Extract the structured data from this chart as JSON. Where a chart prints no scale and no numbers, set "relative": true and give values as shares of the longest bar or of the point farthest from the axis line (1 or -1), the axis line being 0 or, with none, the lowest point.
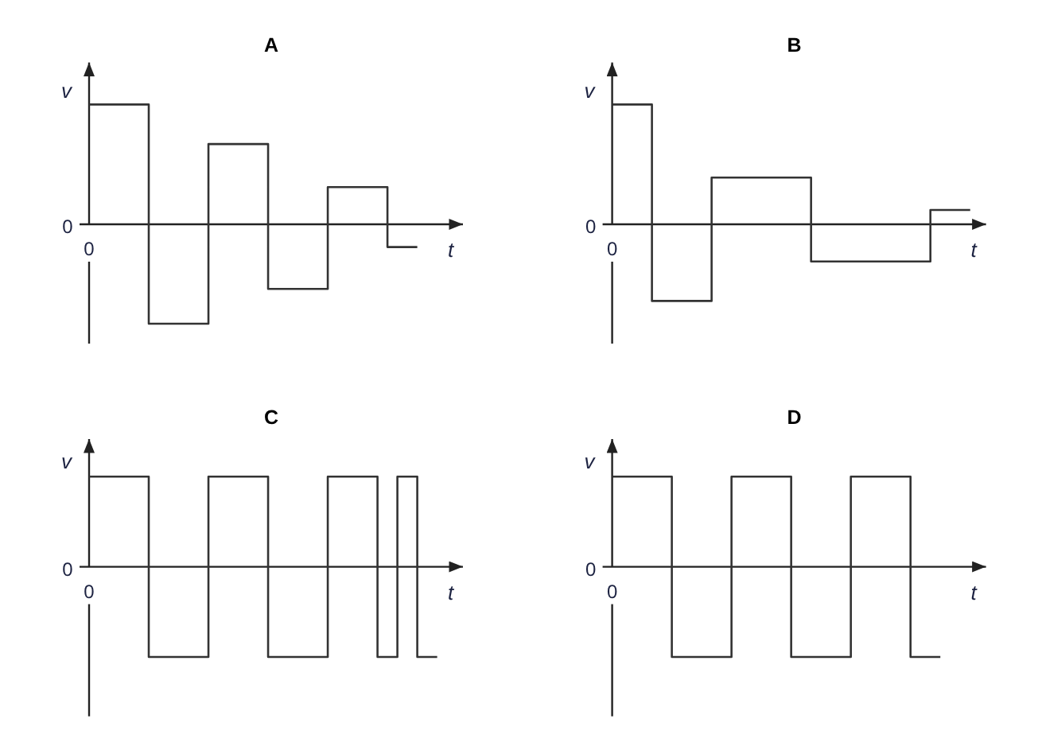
{
  "chart_data": [
    {
      "type": "step",
      "title": "A",
      "xlabel": "t",
      "ylabel": "v",
      "relative": true,
      "color": "#333333",
      "annotations": [
        "0",
        "0"
      ],
      "categories": [
        null,
        null,
        null,
        null,
        null,
        null,
        null,
        null,
        null,
        null,
        null,
        null,
        null,
        null,
        null,
        null,
        null,
        null,
        null,
        null,
        null,
        null,
        null,
        null,
        null,
        null,
        null,
        null,
        null,
        null,
        null,
        null,
        null,
        null
      ],
      "values": [
        1,
        1,
        1,
        1,
        1,
        1,
        -0.83,
        -0.83,
        -0.83,
        -0.83,
        -0.83,
        -0.83,
        0.67,
        0.67,
        0.67,
        0.67,
        0.67,
        0.67,
        -0.54,
        -0.54,
        -0.54,
        -0.54,
        -0.54,
        -0.54,
        0.31,
        0.31,
        0.31,
        0.31,
        0.31,
        0.31,
        -0.19,
        -0.19,
        -0.19,
        -0.19
      ]
    },
    {
      "type": "step",
      "title": "B",
      "xlabel": "t",
      "ylabel": "v",
      "relative": true,
      "color": "#333333",
      "annotations": [
        "0",
        "0"
      ],
      "categories": [
        null,
        null,
        null,
        null,
        null,
        null,
        null,
        null,
        null,
        null,
        null,
        null,
        null,
        null,
        null,
        null,
        null,
        null,
        null,
        null,
        null,
        null,
        null,
        null,
        null,
        null,
        null,
        null,
        null,
        null,
        null,
        null,
        null,
        null,
        null,
        null,
        null
      ],
      "values": [
        1,
        1,
        1,
        1,
        -0.64,
        -0.64,
        -0.64,
        -0.64,
        -0.64,
        -0.64,
        0.39,
        0.39,
        0.39,
        0.39,
        0.39,
        0.39,
        0.39,
        0.39,
        0.39,
        0.39,
        -0.31,
        -0.31,
        -0.31,
        -0.31,
        -0.31,
        -0.31,
        -0.31,
        -0.31,
        -0.31,
        -0.31,
        -0.31,
        -0.31,
        0.12,
        0.12,
        0.12,
        0.12,
        0.12
      ]
    },
    {
      "type": "step",
      "title": "C",
      "xlabel": "t",
      "ylabel": "v",
      "relative": true,
      "color": "#333333",
      "annotations": [
        "0",
        "0"
      ],
      "categories": [
        null,
        null,
        null,
        null,
        null,
        null,
        null,
        null,
        null,
        null,
        null,
        null,
        null,
        null,
        null,
        null,
        null,
        null,
        null,
        null,
        null,
        null,
        null,
        null,
        null,
        null,
        null,
        null,
        null,
        null,
        null,
        null,
        null,
        null,
        null,
        null
      ],
      "values": [
        1,
        1,
        1,
        1,
        1,
        1,
        -1,
        -1,
        -1,
        -1,
        -1,
        -1,
        1,
        1,
        1,
        1,
        1,
        1,
        -1,
        -1,
        -1,
        -1,
        -1,
        -1,
        1,
        1,
        1,
        1,
        1,
        -1,
        -1,
        1,
        1,
        -1,
        -1,
        -1
      ]
    },
    {
      "type": "step",
      "title": "D",
      "xlabel": "t",
      "ylabel": "v",
      "relative": true,
      "color": "#333333",
      "annotations": [
        "0",
        "0"
      ],
      "categories": [
        null,
        null,
        null,
        null,
        null,
        null,
        null,
        null,
        null,
        null,
        null,
        null,
        null,
        null,
        null,
        null,
        null,
        null,
        null,
        null,
        null,
        null,
        null,
        null,
        null,
        null,
        null,
        null,
        null,
        null,
        null,
        null,
        null,
        null
      ],
      "values": [
        1,
        1,
        1,
        1,
        1,
        1,
        -1,
        -1,
        -1,
        -1,
        -1,
        -1,
        1,
        1,
        1,
        1,
        1,
        1,
        -1,
        -1,
        -1,
        -1,
        -1,
        -1,
        1,
        1,
        1,
        1,
        1,
        1,
        -1,
        -1,
        -1,
        -1
      ]
    }
  ]
}
